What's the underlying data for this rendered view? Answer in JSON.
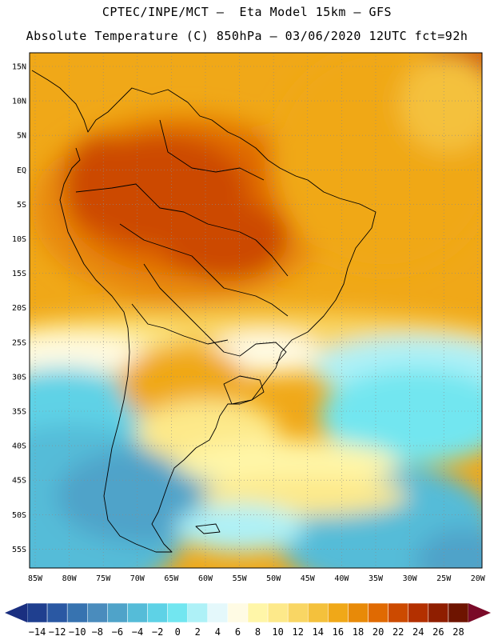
{
  "header": {
    "line1": "CPTEC/INPE/MCT –  Eta Model 15km – GFS",
    "line2": "Absolute Temperature (C) 850hPa – 03/06/2020 12UTC fct=92h"
  },
  "map": {
    "lat_labels": [
      "15N",
      "10N",
      "5N",
      "EQ",
      "5S",
      "10S",
      "15S",
      "20S",
      "25S",
      "30S",
      "35S",
      "40S",
      "45S",
      "50S",
      "55S"
    ],
    "lon_labels": [
      "85W",
      "80W",
      "75W",
      "70W",
      "65W",
      "60W",
      "55W",
      "50W",
      "45W",
      "40W",
      "35W",
      "30W",
      "25W",
      "20W"
    ]
  },
  "colorbar": {
    "labels": [
      "-14",
      "-12",
      "-10",
      "-8",
      "-6",
      "-4",
      "-2",
      "0",
      "2",
      "4",
      "6",
      "8",
      "10",
      "12",
      "14",
      "16",
      "18",
      "20",
      "22",
      "24",
      "26",
      "28"
    ],
    "colors": [
      "#1f3f8f",
      "#2a58a3",
      "#3773b0",
      "#4a8cbd",
      "#4fa3c9",
      "#55bcd8",
      "#5ed2e6",
      "#72e6f0",
      "#aef1f7",
      "#e4f8fb",
      "#fffbe4",
      "#fff6a8",
      "#fde98a",
      "#f9d664",
      "#f4c13c",
      "#f0a818",
      "#e88a08",
      "#e06a02",
      "#cc4a00",
      "#b33000",
      "#8f1e00",
      "#6e1400"
    ],
    "under_color": "#1a2f80",
    "over_color": "#7a0a28"
  }
}
